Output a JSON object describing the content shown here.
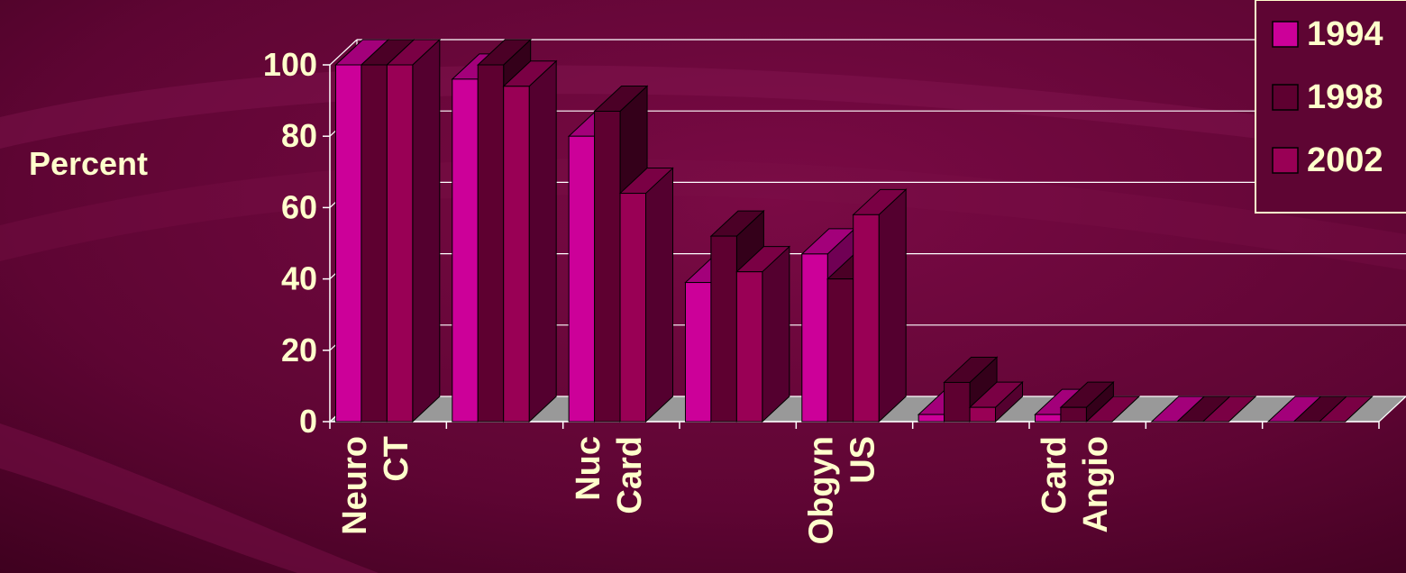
{
  "chart_data": {
    "type": "bar",
    "ylabel": "Percent",
    "ylim": [
      0,
      100
    ],
    "y_ticks": [
      "0",
      "20",
      "40",
      "60",
      "80",
      "100"
    ],
    "grid": true,
    "legend_position": "top-right",
    "category_labels": [
      [
        "Neuro",
        "CT"
      ],
      [
        "",
        ""
      ],
      [
        "Nuc",
        "Card"
      ],
      [
        "",
        ""
      ],
      [
        "Obgyn",
        "US"
      ],
      [
        "",
        ""
      ],
      [
        "Card",
        "Angio"
      ],
      [
        "",
        ""
      ],
      [
        "",
        ""
      ]
    ],
    "series": [
      {
        "name": "1994",
        "color": "#cc0099",
        "values": [
          100,
          96,
          80,
          39,
          47,
          2,
          2,
          0,
          0
        ]
      },
      {
        "name": "1998",
        "color": "#5e0030",
        "values": [
          100,
          100,
          87,
          52,
          40,
          11,
          4,
          0,
          0
        ]
      },
      {
        "name": "2002",
        "color": "#990055",
        "values": [
          100,
          94,
          64,
          42,
          58,
          4,
          0,
          0,
          0
        ]
      }
    ]
  },
  "colors": {
    "background": "#5a0530",
    "text": "#ffffcc",
    "floor": "#999999",
    "axis": "#ffffcc"
  }
}
